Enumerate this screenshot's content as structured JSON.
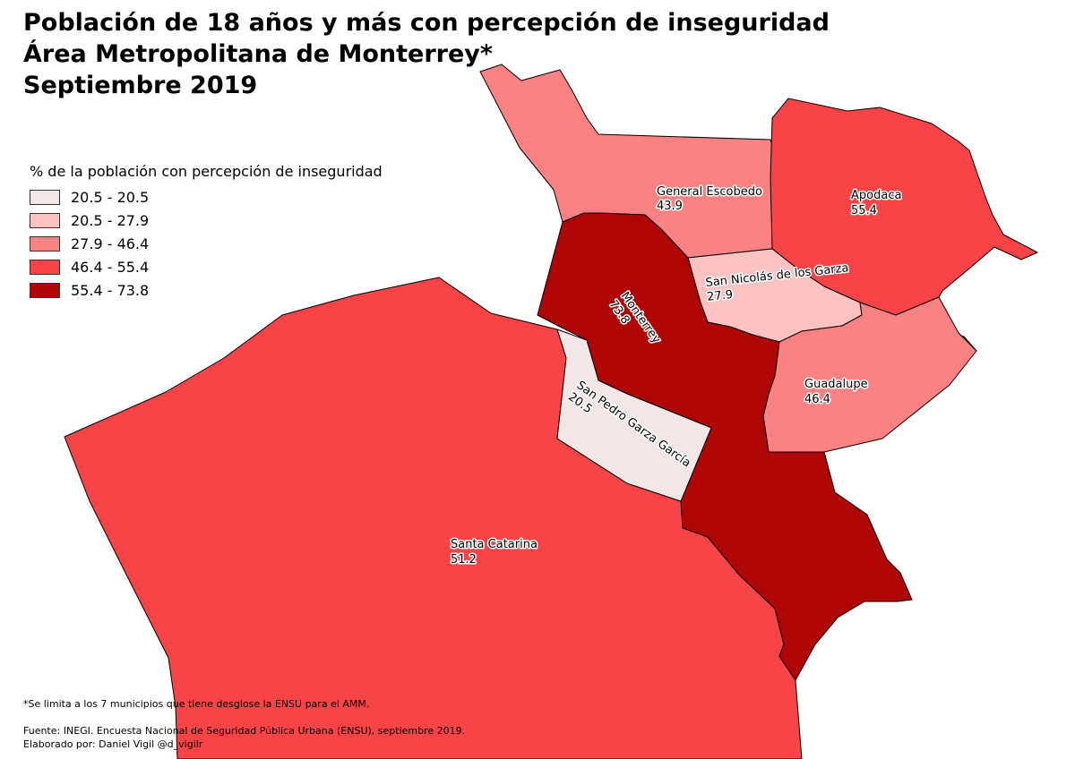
{
  "title": {
    "line1": "Población de 18 años y más con percepción de inseguridad",
    "line2": "Área Metropolitana de Monterrey*",
    "line3": "Septiembre 2019"
  },
  "legend": {
    "title": "% de la población con percepción de inseguridad",
    "classes": [
      {
        "label": "20.5 - 20.5",
        "color": "#f2e6e6"
      },
      {
        "label": "20.5 - 27.9",
        "color": "#fdc2c2"
      },
      {
        "label": "27.9 - 46.4",
        "color": "#fb8282"
      },
      {
        "label": "46.4 - 55.4",
        "color": "#f84446"
      },
      {
        "label": "55.4 - 73.8",
        "color": "#b00505"
      }
    ]
  },
  "municipalities": [
    {
      "name": "General Escobedo",
      "value": "43.9",
      "color": "#fb8282"
    },
    {
      "name": "Apodaca",
      "value": "55.4",
      "color": "#f84446"
    },
    {
      "name": "San Nicolás de los Garza",
      "value": "27.9",
      "color": "#fdc2c2"
    },
    {
      "name": "Monterrey",
      "value": "73.8",
      "color": "#b00505"
    },
    {
      "name": "Guadalupe",
      "value": "46.4",
      "color": "#fb8282"
    },
    {
      "name": "San Pedro Garza García",
      "value": "20.5",
      "color": "#f2e6e6"
    },
    {
      "name": "Santa Catarina",
      "value": "51.2",
      "color": "#f84446"
    }
  ],
  "footer": {
    "note": "*Se limita a los 7 municipios que tiene desglose la ENSU para el AMM.",
    "source": "Fuente: INEGI. Encuesta Nacional de Seguridad Pública Urbana (ENSU), septiembre 2019.",
    "credit": "Elaborado por: Daniel Vigil @d_vigilr"
  }
}
